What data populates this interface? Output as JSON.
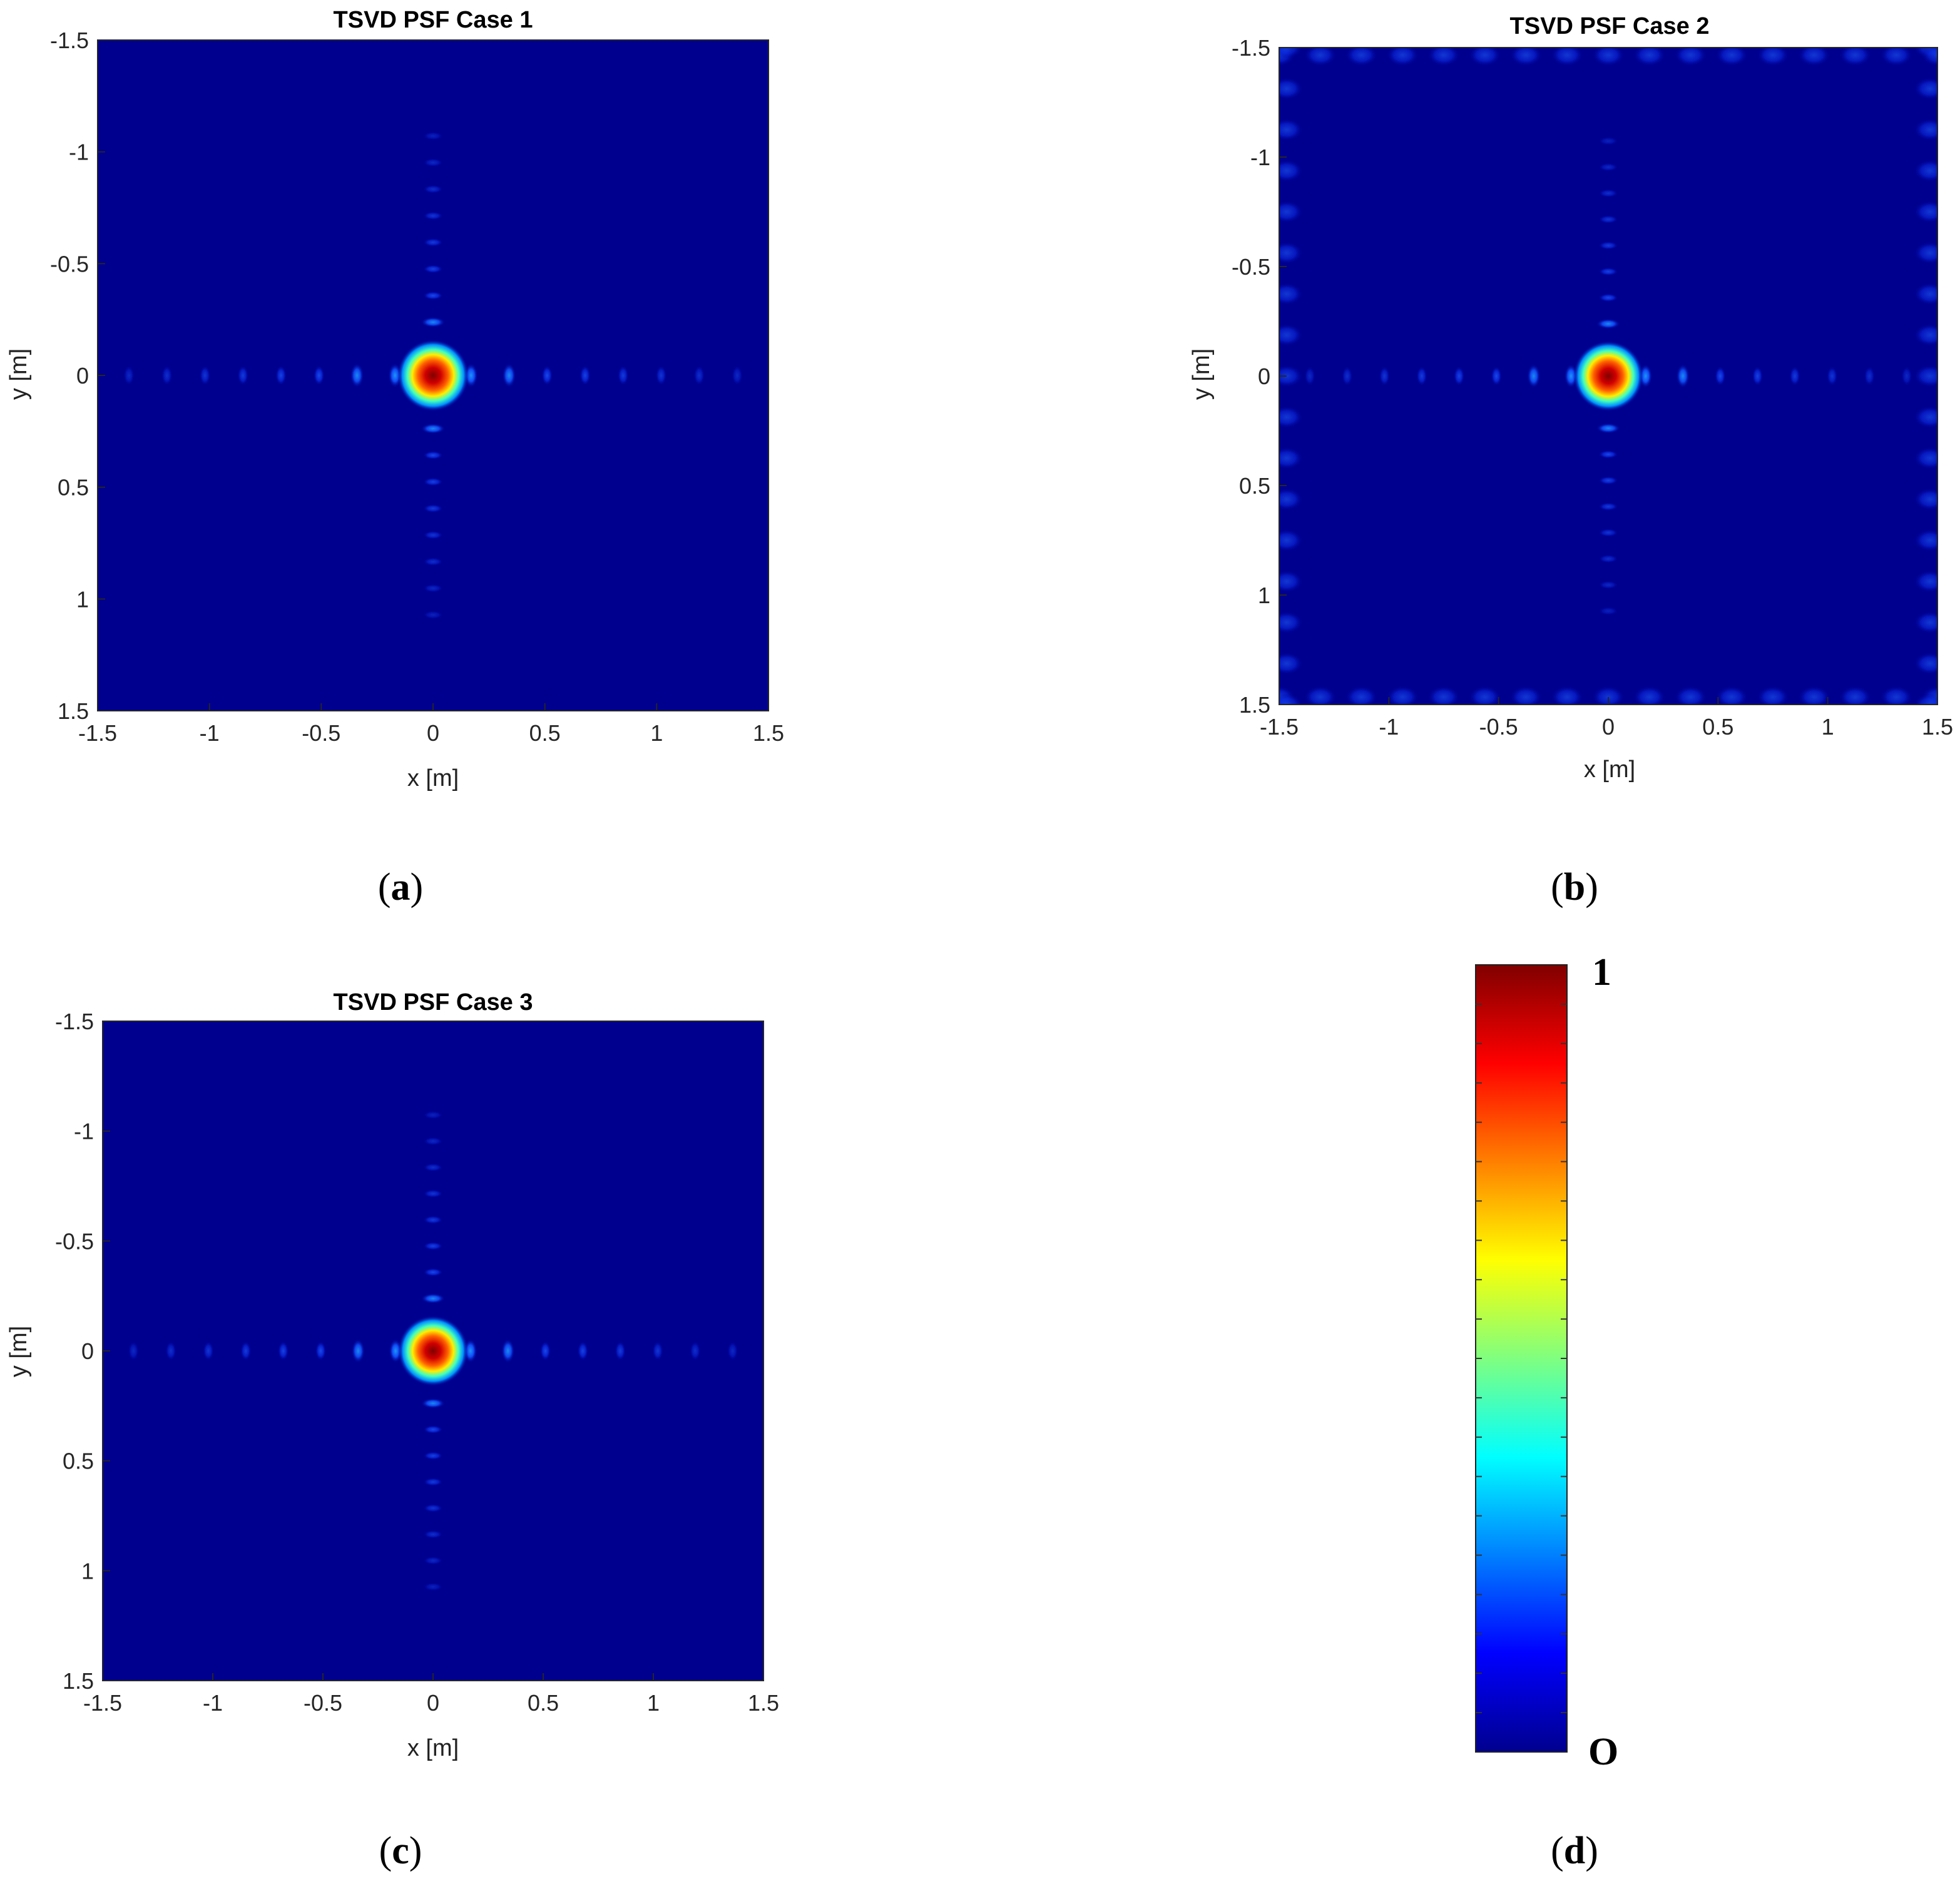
{
  "panels": [
    {
      "id": "a",
      "letter": "a",
      "title": "TSVD PSF Case 1",
      "xlabel": "x [m]",
      "ylabel": "y [m]",
      "caption": "a"
    },
    {
      "id": "b",
      "letter": "b",
      "title": "TSVD PSF Case 2",
      "xlabel": "x [m]",
      "ylabel": "y [m]",
      "caption": "b"
    },
    {
      "id": "c",
      "letter": "c",
      "title": "TSVD PSF Case 3",
      "xlabel": "x [m]",
      "ylabel": "y [m]",
      "caption": "c"
    }
  ],
  "colorbar": {
    "max_label": "1",
    "min_label": "O",
    "caption": "d",
    "colormap": "jet"
  },
  "colors": {
    "background_low": "#00008f",
    "peak": "#800000"
  },
  "chart_data": [
    {
      "type": "heatmap",
      "title": "TSVD PSF Case 1",
      "xlabel": "x [m]",
      "ylabel": "y [m]",
      "xlim": [
        -1.5,
        1.5
      ],
      "ylim": [
        -1.5,
        1.5
      ],
      "y_reversed": true,
      "xticks": [
        "-1.5",
        "-1",
        "-0.5",
        "0",
        "0.5",
        "1",
        "1.5"
      ],
      "yticks": [
        "-1.5",
        "-1",
        "-0.5",
        "0",
        "0.5",
        "1",
        "1.5"
      ],
      "peak": {
        "x": 0,
        "y": 0,
        "value": 1
      },
      "sidelobes": "cross along x=0 and y=0",
      "value_range": [
        0,
        1
      ]
    },
    {
      "type": "heatmap",
      "title": "TSVD PSF Case 2",
      "xlabel": "x [m]",
      "ylabel": "y [m]",
      "xlim": [
        -1.5,
        1.5
      ],
      "ylim": [
        -1.5,
        1.5
      ],
      "y_reversed": true,
      "xticks": [
        "-1.5",
        "-1",
        "-0.5",
        "0",
        "0.5",
        "1",
        "1.5"
      ],
      "yticks": [
        "-1.5",
        "-1",
        "-0.5",
        "0",
        "0.5",
        "1",
        "1.5"
      ],
      "peak": {
        "x": 0,
        "y": 0,
        "value": 1
      },
      "sidelobes": "cross along x=0 and y=0 plus artifacts along the image borders",
      "value_range": [
        0,
        1
      ]
    },
    {
      "type": "heatmap",
      "title": "TSVD PSF Case 3",
      "xlabel": "x [m]",
      "ylabel": "y [m]",
      "xlim": [
        -1.5,
        1.5
      ],
      "ylim": [
        -1.5,
        1.5
      ],
      "y_reversed": true,
      "xticks": [
        "-1.5",
        "-1",
        "-0.5",
        "0",
        "0.5",
        "1",
        "1.5"
      ],
      "yticks": [
        "-1.5",
        "-1",
        "-0.5",
        "0",
        "0.5",
        "1",
        "1.5"
      ],
      "peak": {
        "x": 0,
        "y": 0,
        "value": 1
      },
      "sidelobes": "cross along x=0 and y=0",
      "value_range": [
        0,
        1
      ]
    }
  ]
}
